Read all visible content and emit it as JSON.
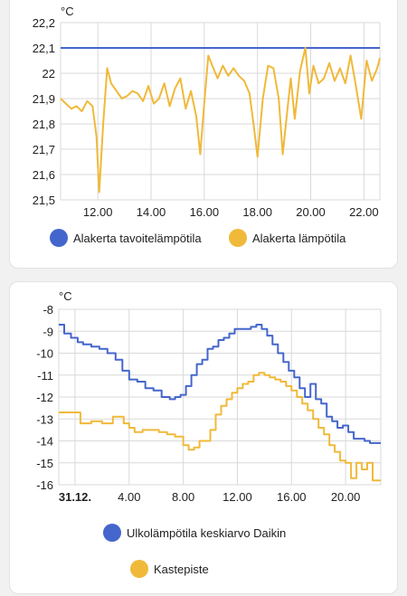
{
  "charts": [
    {
      "unit": "°C",
      "legend": [
        {
          "label": "Alakerta tavoitelämpötila",
          "color": "#4466cc"
        },
        {
          "label": "Alakerta lämpötila",
          "color": "#f0b93a"
        }
      ]
    },
    {
      "unit": "°C",
      "legend": [
        {
          "label": "Ulkolämpötila keskiarvo Daikin",
          "color": "#4466cc"
        },
        {
          "label": "Kastepiste",
          "color": "#f0b93a"
        }
      ]
    }
  ],
  "chart_data": [
    {
      "type": "line",
      "title": "",
      "xlabel": "",
      "ylabel": "°C",
      "x_range": [
        10.6,
        22.6
      ],
      "ylim": [
        21.5,
        22.2
      ],
      "y_ticks": [
        "22,2",
        "22,1",
        "22",
        "21,9",
        "21,8",
        "21,7",
        "21,6",
        "21,5"
      ],
      "y_tick_values": [
        22.2,
        22.1,
        22.0,
        21.9,
        21.8,
        21.7,
        21.6,
        21.5
      ],
      "x_ticks": [
        "12.00",
        "14.00",
        "16.00",
        "18.00",
        "20.00",
        "22.00"
      ],
      "x_tick_values": [
        12,
        14,
        16,
        18,
        20,
        22
      ],
      "grid": true,
      "legend_position": "bottom",
      "series": [
        {
          "name": "Alakerta tavoitelämpötila",
          "color": "#4466cc",
          "step": false,
          "x": [
            10.6,
            22.6
          ],
          "y": [
            22.1,
            22.1
          ]
        },
        {
          "name": "Alakerta lämpötila",
          "color": "#f0b93a",
          "step": false,
          "x": [
            10.6,
            10.8,
            11.0,
            11.2,
            11.4,
            11.6,
            11.8,
            11.95,
            12.05,
            12.2,
            12.35,
            12.5,
            12.7,
            12.9,
            13.1,
            13.3,
            13.5,
            13.7,
            13.9,
            14.1,
            14.3,
            14.5,
            14.7,
            14.9,
            15.1,
            15.3,
            15.5,
            15.7,
            15.85,
            16.0,
            16.15,
            16.3,
            16.5,
            16.7,
            16.9,
            17.1,
            17.3,
            17.5,
            17.7,
            17.85,
            18.0,
            18.2,
            18.4,
            18.6,
            18.8,
            18.95,
            19.1,
            19.25,
            19.4,
            19.6,
            19.8,
            19.95,
            20.1,
            20.3,
            20.5,
            20.7,
            20.9,
            21.1,
            21.3,
            21.5,
            21.7,
            21.9,
            22.1,
            22.3,
            22.5,
            22.6
          ],
          "y": [
            21.9,
            21.88,
            21.86,
            21.87,
            21.85,
            21.89,
            21.87,
            21.75,
            21.53,
            21.8,
            22.02,
            21.96,
            21.93,
            21.9,
            21.91,
            21.93,
            21.92,
            21.89,
            21.95,
            21.88,
            21.9,
            21.96,
            21.87,
            21.94,
            21.98,
            21.86,
            21.93,
            21.83,
            21.68,
            21.88,
            22.07,
            22.03,
            21.98,
            22.03,
            21.99,
            22.02,
            21.99,
            21.97,
            21.92,
            21.8,
            21.67,
            21.9,
            22.03,
            22.02,
            21.9,
            21.68,
            21.83,
            21.98,
            21.82,
            22.01,
            22.1,
            21.92,
            22.03,
            21.96,
            21.98,
            22.04,
            21.97,
            22.02,
            21.96,
            22.07,
            21.95,
            21.82,
            22.05,
            21.97,
            22.02,
            22.06
          ]
        }
      ]
    },
    {
      "type": "line",
      "title": "",
      "xlabel": "",
      "ylabel": "°C",
      "x_range": [
        -1.2,
        22.6
      ],
      "ylim": [
        -16,
        -8
      ],
      "y_ticks": [
        "-8",
        "-9",
        "-10",
        "-11",
        "-12",
        "-13",
        "-14",
        "-15",
        "-16"
      ],
      "y_tick_values": [
        -8,
        -9,
        -10,
        -11,
        -12,
        -13,
        -14,
        -15,
        -16
      ],
      "x_ticks": [
        "31.12.",
        "4.00",
        "8.00",
        "12.00",
        "16.00",
        "20.00"
      ],
      "x_tick_values": [
        0,
        4,
        8,
        12,
        16,
        20
      ],
      "grid": true,
      "legend_position": "bottom",
      "series": [
        {
          "name": "Ulkolämpötila keskiarvo Daikin",
          "color": "#4466cc",
          "step": true,
          "x": [
            -1.2,
            -0.8,
            -0.3,
            0.2,
            0.6,
            1.2,
            1.8,
            2.4,
            3.0,
            3.5,
            4.0,
            4.6,
            5.2,
            5.8,
            6.4,
            7.0,
            7.4,
            7.8,
            8.2,
            8.6,
            9.0,
            9.4,
            9.8,
            10.2,
            10.6,
            11.0,
            11.4,
            11.8,
            12.2,
            12.6,
            13.0,
            13.4,
            13.8,
            14.2,
            14.6,
            15.0,
            15.4,
            15.8,
            16.2,
            16.6,
            17.0,
            17.4,
            17.8,
            18.2,
            18.6,
            19.0,
            19.4,
            19.8,
            20.2,
            20.6,
            21.0,
            21.4,
            21.8,
            22.2,
            22.6
          ],
          "y": [
            -8.7,
            -9.1,
            -9.3,
            -9.5,
            -9.6,
            -9.7,
            -9.8,
            -10.0,
            -10.3,
            -10.8,
            -11.2,
            -11.3,
            -11.6,
            -11.7,
            -12.0,
            -12.1,
            -12.0,
            -11.9,
            -11.5,
            -11.0,
            -10.5,
            -10.3,
            -9.8,
            -9.7,
            -9.4,
            -9.3,
            -9.1,
            -8.9,
            -8.9,
            -8.9,
            -8.8,
            -8.7,
            -8.9,
            -9.2,
            -9.6,
            -10.0,
            -10.4,
            -10.8,
            -11.1,
            -11.6,
            -12.0,
            -11.4,
            -12.1,
            -12.3,
            -12.9,
            -13.1,
            -13.4,
            -13.3,
            -13.6,
            -13.9,
            -13.9,
            -14.0,
            -14.1,
            -14.1,
            -14.1
          ]
        },
        {
          "name": "Kastepiste",
          "color": "#f0b93a",
          "step": true,
          "x": [
            -1.2,
            0.0,
            0.4,
            1.2,
            2.0,
            2.8,
            3.6,
            4.0,
            4.4,
            5.0,
            5.6,
            6.2,
            6.8,
            7.4,
            8.0,
            8.4,
            8.8,
            9.2,
            9.6,
            10.0,
            10.4,
            10.8,
            11.2,
            11.6,
            12.0,
            12.4,
            12.8,
            13.2,
            13.6,
            14.0,
            14.4,
            14.8,
            15.2,
            15.6,
            16.0,
            16.4,
            16.8,
            17.2,
            17.6,
            18.0,
            18.4,
            18.8,
            19.2,
            19.6,
            20.0,
            20.4,
            20.8,
            21.2,
            21.6,
            22.0,
            22.6
          ],
          "y": [
            -12.7,
            -12.7,
            -13.2,
            -13.1,
            -13.2,
            -12.9,
            -13.2,
            -13.4,
            -13.6,
            -13.5,
            -13.5,
            -13.6,
            -13.7,
            -13.8,
            -14.2,
            -14.4,
            -14.3,
            -14.0,
            -14.0,
            -13.5,
            -12.8,
            -12.4,
            -12.1,
            -11.8,
            -11.6,
            -11.4,
            -11.3,
            -11.0,
            -10.9,
            -11.0,
            -11.1,
            -11.2,
            -11.3,
            -11.5,
            -11.7,
            -12.0,
            -12.3,
            -12.6,
            -13.0,
            -13.4,
            -13.7,
            -14.2,
            -14.5,
            -14.9,
            -15.0,
            -15.7,
            -15.0,
            -15.3,
            -15.0,
            -15.8,
            -15.8
          ]
        }
      ]
    }
  ]
}
